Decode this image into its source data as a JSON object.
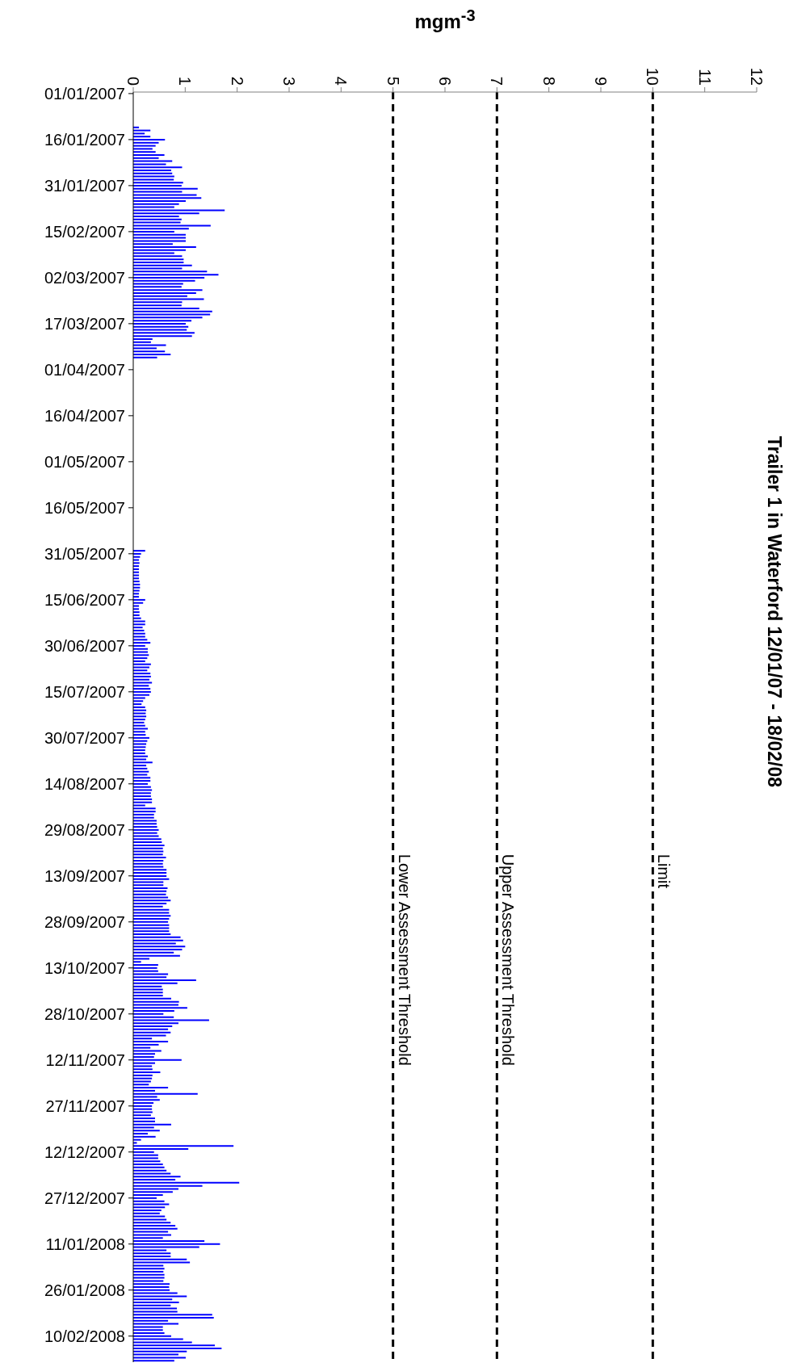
{
  "chart_data": {
    "type": "bar",
    "orientation": "horizontal",
    "title": "Trailer 1 in Waterford 12/01/07 - 18/02/08",
    "xlabel": "mgm$^{-3}$",
    "categories": [
      "01/01/2007",
      null,
      null,
      null,
      null,
      null,
      null,
      null,
      null,
      null,
      null,
      null,
      null,
      null,
      null,
      "16/01/2007",
      null,
      null,
      null,
      null,
      null,
      null,
      null,
      null,
      null,
      null,
      null,
      null,
      null,
      null,
      "31/01/2007",
      null,
      null,
      null,
      null,
      null,
      null,
      null,
      null,
      null,
      null,
      null,
      null,
      null,
      null,
      "15/02/2007",
      null,
      null,
      null,
      null,
      null,
      null,
      null,
      null,
      null,
      null,
      null,
      null,
      null,
      null,
      "02/03/2007",
      null,
      null,
      null,
      null,
      null,
      null,
      null,
      null,
      null,
      null,
      null,
      null,
      null,
      null,
      "17/03/2007",
      null,
      null,
      null,
      null,
      null,
      null,
      null,
      null,
      null,
      null,
      null,
      null,
      null,
      null,
      "01/04/2007",
      null,
      null,
      null,
      null,
      null,
      null,
      null,
      null,
      null,
      null,
      null,
      null,
      null,
      null,
      "16/04/2007",
      null,
      null,
      null,
      null,
      null,
      null,
      null,
      null,
      null,
      null,
      null,
      null,
      null,
      null,
      "01/05/2007",
      null,
      null,
      null,
      null,
      null,
      null,
      null,
      null,
      null,
      null,
      null,
      null,
      null,
      null,
      "16/05/2007",
      null,
      null,
      null,
      null,
      null,
      null,
      null,
      null,
      null,
      null,
      null,
      null,
      null,
      null,
      "31/05/2007",
      null,
      null,
      null,
      null,
      null,
      null,
      null,
      null,
      null,
      null,
      null,
      null,
      null,
      null,
      "15/06/2007",
      null,
      null,
      null,
      null,
      null,
      null,
      null,
      null,
      null,
      null,
      null,
      null,
      null,
      null,
      "30/06/2007",
      null,
      null,
      null,
      null,
      null,
      null,
      null,
      null,
      null,
      null,
      null,
      null,
      null,
      null,
      "15/07/2007",
      null,
      null,
      null,
      null,
      null,
      null,
      null,
      null,
      null,
      null,
      null,
      null,
      null,
      null,
      "30/07/2007",
      null,
      null,
      null,
      null,
      null,
      null,
      null,
      null,
      null,
      null,
      null,
      null,
      null,
      null,
      "14/08/2007",
      null,
      null,
      null,
      null,
      null,
      null,
      null,
      null,
      null,
      null,
      null,
      null,
      null,
      null,
      "29/08/2007",
      null,
      null,
      null,
      null,
      null,
      null,
      null,
      null,
      null,
      null,
      null,
      null,
      null,
      null,
      "13/09/2007",
      null,
      null,
      null,
      null,
      null,
      null,
      null,
      null,
      null,
      null,
      null,
      null,
      null,
      null,
      "28/09/2007",
      null,
      null,
      null,
      null,
      null,
      null,
      null,
      null,
      null,
      null,
      null,
      null,
      null,
      null,
      "13/10/2007",
      null,
      null,
      null,
      null,
      null,
      null,
      null,
      null,
      null,
      null,
      null,
      null,
      null,
      null,
      "28/10/2007",
      null,
      null,
      null,
      null,
      null,
      null,
      null,
      null,
      null,
      null,
      null,
      null,
      null,
      null,
      "12/11/2007",
      null,
      null,
      null,
      null,
      null,
      null,
      null,
      null,
      null,
      null,
      null,
      null,
      null,
      null,
      "27/11/2007",
      null,
      null,
      null,
      null,
      null,
      null,
      null,
      null,
      null,
      null,
      null,
      null,
      null,
      null,
      "12/12/2007",
      null,
      null,
      null,
      null,
      null,
      null,
      null,
      null,
      null,
      null,
      null,
      null,
      null,
      null,
      "27/12/2007",
      null,
      null,
      null,
      null,
      null,
      null,
      null,
      null,
      null,
      null,
      null,
      null,
      null,
      null,
      "11/01/2008",
      null,
      null,
      null,
      null,
      null,
      null,
      null,
      null,
      null,
      null,
      null,
      null,
      null,
      null,
      "26/01/2008",
      null,
      null,
      null,
      null,
      null,
      null,
      null,
      null,
      null,
      null,
      null,
      null,
      null,
      null,
      "10/02/2008",
      null,
      null,
      null,
      null,
      null,
      null,
      null,
      null
    ],
    "values": [
      null,
      null,
      null,
      null,
      null,
      null,
      null,
      null,
      null,
      null,
      null,
      0.11,
      0.33,
      0.22,
      0.33,
      0.61,
      0.49,
      0.43,
      0.37,
      0.43,
      0.6,
      0.49,
      0.75,
      0.63,
      0.94,
      0.73,
      0.75,
      0.79,
      0.78,
      0.96,
      0.93,
      1.24,
      0.94,
      1.22,
      1.31,
      1.01,
      0.88,
      0.79,
      1.76,
      1.27,
      0.88,
      0.93,
      0.91,
      1.49,
      1.07,
      0.79,
      1.01,
      1.01,
      1.01,
      0.76,
      1.21,
      1.01,
      0.79,
      0.94,
      0.97,
      0.97,
      1.13,
      0.94,
      1.42,
      1.64,
      1.37,
      1.19,
      0.96,
      0.93,
      1.33,
      1.21,
      1.04,
      1.36,
      0.94,
      0.93,
      1.27,
      1.52,
      1.48,
      1.33,
      1.12,
      1.01,
      1.06,
      1.03,
      1.18,
      1.13,
      0.37,
      0.34,
      0.63,
      0.45,
      0.61,
      0.72,
      0.46,
      null,
      null,
      null,
      null,
      null,
      null,
      null,
      null,
      null,
      null,
      null,
      null,
      null,
      null,
      null,
      null,
      null,
      null,
      null,
      null,
      null,
      null,
      null,
      null,
      null,
      null,
      null,
      null,
      null,
      null,
      null,
      null,
      null,
      null,
      null,
      null,
      null,
      null,
      null,
      null,
      null,
      null,
      null,
      null,
      null,
      null,
      null,
      null,
      null,
      null,
      null,
      null,
      null,
      null,
      null,
      null,
      null,
      null,
      null,
      null,
      null,
      null,
      0.23,
      0.15,
      0.13,
      0.11,
      0.12,
      0.11,
      0.11,
      0.11,
      0.11,
      0.11,
      0.12,
      0.13,
      0.13,
      0.12,
      0.11,
      0.11,
      0.23,
      0.19,
      0.11,
      0.11,
      0.12,
      0.12,
      0.15,
      0.23,
      0.23,
      0.18,
      0.21,
      0.23,
      0.23,
      0.27,
      0.33,
      0.23,
      0.28,
      0.28,
      0.3,
      0.27,
      0.23,
      0.34,
      0.31,
      0.27,
      0.33,
      0.34,
      0.31,
      0.36,
      0.3,
      0.33,
      0.34,
      0.31,
      0.23,
      0.19,
      0.16,
      0.23,
      0.25,
      0.24,
      0.25,
      0.23,
      0.21,
      0.23,
      0.28,
      0.23,
      0.24,
      0.31,
      0.27,
      0.25,
      0.24,
      0.23,
      0.23,
      0.28,
      0.25,
      0.37,
      0.25,
      0.27,
      0.3,
      0.27,
      0.33,
      0.33,
      0.28,
      0.34,
      0.36,
      0.34,
      0.34,
      0.36,
      0.36,
      0.23,
      0.43,
      0.43,
      0.4,
      0.4,
      0.45,
      0.45,
      0.46,
      0.49,
      0.46,
      0.49,
      0.54,
      0.55,
      0.6,
      0.57,
      0.58,
      0.57,
      0.63,
      0.58,
      0.57,
      0.58,
      0.64,
      0.64,
      0.64,
      0.69,
      0.58,
      0.58,
      0.66,
      0.64,
      0.63,
      0.67,
      0.72,
      0.64,
      0.57,
      0.69,
      0.69,
      0.72,
      0.69,
      0.67,
      0.69,
      0.69,
      0.69,
      0.72,
      0.91,
      0.96,
      0.82,
      1.0,
      0.94,
      0.78,
      0.9,
      0.31,
      0.15,
      0.48,
      0.46,
      0.48,
      0.67,
      0.64,
      1.21,
      0.85,
      0.55,
      0.57,
      0.57,
      0.57,
      0.73,
      0.88,
      0.87,
      1.04,
      0.79,
      0.58,
      0.78,
      1.46,
      0.87,
      0.75,
      0.67,
      0.72,
      0.63,
      0.36,
      0.67,
      0.49,
      0.33,
      0.54,
      0.42,
      0.4,
      0.93,
      0.42,
      0.36,
      0.37,
      0.52,
      0.37,
      0.36,
      0.34,
      0.3,
      0.67,
      0.42,
      1.24,
      0.46,
      0.51,
      0.39,
      0.36,
      0.36,
      0.37,
      0.34,
      0.42,
      0.42,
      0.73,
      0.4,
      0.51,
      0.28,
      0.43,
      0.15,
      0.07,
      1.93,
      1.06,
      0.4,
      0.48,
      0.48,
      0.52,
      0.57,
      0.6,
      0.64,
      0.72,
      0.91,
      0.81,
      2.04,
      1.33,
      0.87,
      0.76,
      0.57,
      0.45,
      0.6,
      0.69,
      0.61,
      0.54,
      0.51,
      0.61,
      0.64,
      0.72,
      0.81,
      0.85,
      0.67,
      0.73,
      0.57,
      1.37,
      1.67,
      1.27,
      0.64,
      0.72,
      0.72,
      1.03,
      1.09,
      0.58,
      0.6,
      0.58,
      0.6,
      0.6,
      0.58,
      0.7,
      0.69,
      0.7,
      0.85,
      1.03,
      0.75,
      0.88,
      0.72,
      0.84,
      0.85,
      1.52,
      1.55,
      0.67,
      0.87,
      0.57,
      0.57,
      0.6,
      0.73,
      0.96,
      1.13,
      1.57,
      1.7,
      1.03,
      0.87,
      1.01,
      0.79
    ],
    "color": "#0000ff",
    "xlim": [
      0,
      12
    ],
    "xticks": [
      0,
      1,
      2,
      3,
      4,
      5,
      6,
      7,
      8,
      9,
      10,
      11,
      12
    ],
    "ref_lines": [
      {
        "axis": "x",
        "value": 5,
        "label": "Lower Assessment Threshold",
        "color": "#000000",
        "line_style": "dashed"
      },
      {
        "axis": "x",
        "value": 7,
        "label": "Upper Assessment Threshold",
        "color": "#000000",
        "line_style": "dashed"
      },
      {
        "axis": "x",
        "value": 10,
        "label": "Limit",
        "color": "#000000",
        "line_style": "dashed"
      }
    ]
  }
}
